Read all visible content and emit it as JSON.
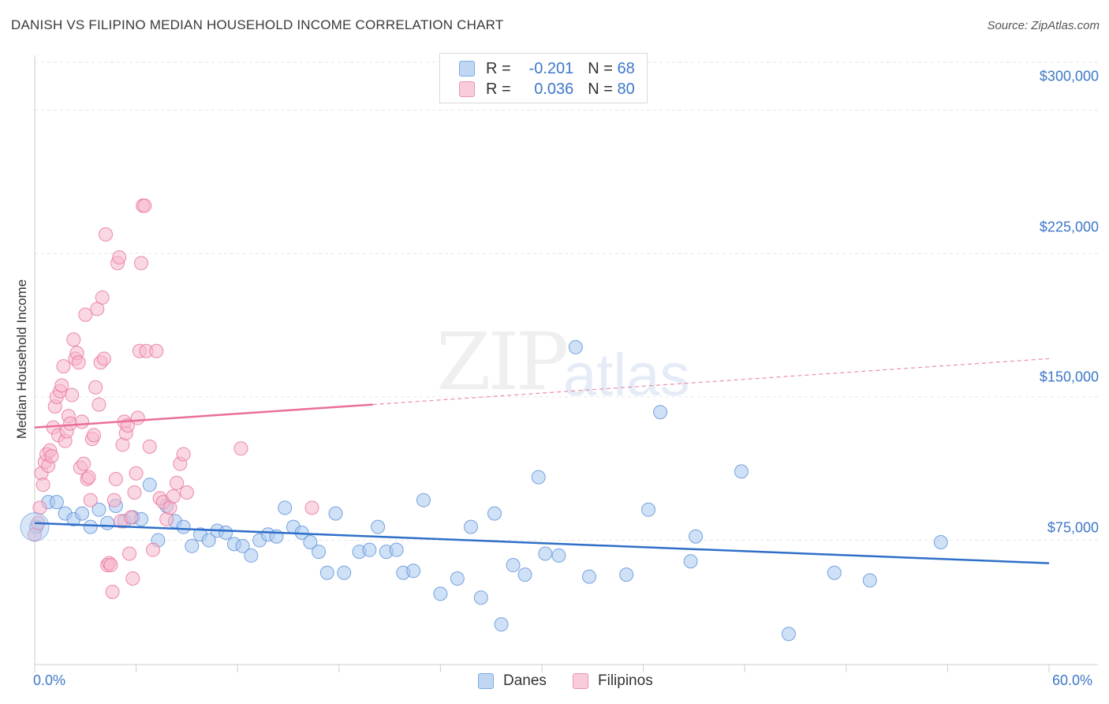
{
  "title": "DANISH VS FILIPINO MEDIAN HOUSEHOLD INCOME CORRELATION CHART",
  "source": "Source: ZipAtlas.com",
  "watermark": {
    "part1": "ZIP",
    "part2": "atlas"
  },
  "legend": {
    "rows": [
      {
        "r_label": "R =",
        "r_value": "-0.201",
        "n_label": "N =",
        "n_value": "68",
        "color": "#a8c8f0"
      },
      {
        "r_label": "R =",
        "r_value": "0.036",
        "n_label": "N =",
        "n_value": "80",
        "color": "#f5b8cc"
      }
    ]
  },
  "chart_data": {
    "type": "scatter",
    "title": "DANISH VS FILIPINO MEDIAN HOUSEHOLD INCOME CORRELATION CHART",
    "xlabel": "",
    "ylabel": "Median Household Income",
    "xlim": [
      0,
      60
    ],
    "ylim": [
      10000,
      325000
    ],
    "x_tick_labels": [
      "0.0%",
      "60.0%"
    ],
    "y_ticks": [
      75000,
      150000,
      225000,
      300000
    ],
    "y_tick_labels": [
      "$75,000",
      "$150,000",
      "$225,000",
      "$300,000"
    ],
    "grid": true,
    "legend_position": "top-center",
    "series": [
      {
        "name": "Danes",
        "color": "#5b8fd6",
        "fill": "#a8c8f0",
        "trend": {
          "x": [
            0,
            60
          ],
          "y": [
            84000,
            63000
          ],
          "dashed_from": null
        },
        "points": [
          [
            0.1,
            82000
          ],
          [
            0.8,
            95000
          ],
          [
            1.3,
            95000
          ],
          [
            1.8,
            89000
          ],
          [
            2.3,
            86000
          ],
          [
            2.8,
            89000
          ],
          [
            3.3,
            82000
          ],
          [
            3.8,
            91000
          ],
          [
            4.3,
            84000
          ],
          [
            4.8,
            93000
          ],
          [
            5.3,
            85000
          ],
          [
            5.8,
            87000
          ],
          [
            6.3,
            86000
          ],
          [
            6.8,
            104000
          ],
          [
            7.3,
            75000
          ],
          [
            7.8,
            93000
          ],
          [
            8.3,
            85000
          ],
          [
            8.8,
            82000
          ],
          [
            9.3,
            72000
          ],
          [
            9.8,
            78000
          ],
          [
            10.3,
            75000
          ],
          [
            10.8,
            80000
          ],
          [
            11.3,
            79000
          ],
          [
            11.8,
            73000
          ],
          [
            12.3,
            72000
          ],
          [
            12.8,
            67000
          ],
          [
            13.3,
            75000
          ],
          [
            13.8,
            78000
          ],
          [
            14.3,
            77000
          ],
          [
            14.8,
            92000
          ],
          [
            15.3,
            82000
          ],
          [
            15.8,
            79000
          ],
          [
            16.3,
            74000
          ],
          [
            16.8,
            69000
          ],
          [
            17.3,
            58000
          ],
          [
            17.8,
            89000
          ],
          [
            18.3,
            58000
          ],
          [
            19.2,
            69000
          ],
          [
            19.8,
            70000
          ],
          [
            20.3,
            82000
          ],
          [
            20.8,
            69000
          ],
          [
            21.4,
            70000
          ],
          [
            21.8,
            58000
          ],
          [
            22.4,
            59000
          ],
          [
            23.0,
            96000
          ],
          [
            24.0,
            47000
          ],
          [
            25.0,
            55000
          ],
          [
            25.8,
            82000
          ],
          [
            26.4,
            45000
          ],
          [
            27.2,
            89000
          ],
          [
            27.6,
            31000
          ],
          [
            28.3,
            62000
          ],
          [
            29.0,
            57000
          ],
          [
            29.8,
            108000
          ],
          [
            30.2,
            68000
          ],
          [
            31.0,
            67000
          ],
          [
            32.0,
            176000
          ],
          [
            32.8,
            56000
          ],
          [
            35.0,
            57000
          ],
          [
            36.3,
            91000
          ],
          [
            37.0,
            142000
          ],
          [
            38.8,
            64000
          ],
          [
            39.1,
            77000
          ],
          [
            41.8,
            111000
          ],
          [
            44.6,
            26000
          ],
          [
            47.3,
            58000
          ],
          [
            49.4,
            54000
          ],
          [
            53.6,
            74000
          ]
        ]
      },
      {
        "name": "Filipinos",
        "color": "#e96f98",
        "fill": "#f5b8cc",
        "trend": {
          "x": [
            0,
            60
          ],
          "y": [
            134000,
            170000
          ],
          "dashed_from": 20
        },
        "points": [
          [
            0.0,
            78000
          ],
          [
            0.2,
            84000
          ],
          [
            0.3,
            92000
          ],
          [
            0.4,
            110000
          ],
          [
            0.5,
            104000
          ],
          [
            0.6,
            116000
          ],
          [
            0.7,
            120000
          ],
          [
            0.8,
            114000
          ],
          [
            0.9,
            122000
          ],
          [
            1.0,
            119000
          ],
          [
            1.1,
            134000
          ],
          [
            1.2,
            145000
          ],
          [
            1.3,
            150000
          ],
          [
            1.4,
            130000
          ],
          [
            1.5,
            153000
          ],
          [
            1.6,
            156000
          ],
          [
            1.7,
            166000
          ],
          [
            1.8,
            127000
          ],
          [
            1.9,
            132000
          ],
          [
            2.0,
            140000
          ],
          [
            2.1,
            136000
          ],
          [
            2.2,
            151000
          ],
          [
            2.3,
            180000
          ],
          [
            2.4,
            170000
          ],
          [
            2.5,
            173000
          ],
          [
            2.6,
            168000
          ],
          [
            2.7,
            113000
          ],
          [
            2.8,
            137000
          ],
          [
            2.9,
            115000
          ],
          [
            3.0,
            193000
          ],
          [
            3.1,
            107000
          ],
          [
            3.2,
            108000
          ],
          [
            3.3,
            96000
          ],
          [
            3.4,
            128000
          ],
          [
            3.5,
            130000
          ],
          [
            3.6,
            155000
          ],
          [
            3.7,
            196000
          ],
          [
            3.8,
            146000
          ],
          [
            3.9,
            168000
          ],
          [
            4.0,
            202000
          ],
          [
            4.1,
            170000
          ],
          [
            4.2,
            235000
          ],
          [
            4.3,
            62000
          ],
          [
            4.4,
            63000
          ],
          [
            4.5,
            62000
          ],
          [
            4.6,
            48000
          ],
          [
            4.7,
            96000
          ],
          [
            4.8,
            107000
          ],
          [
            4.9,
            220000
          ],
          [
            5.0,
            223000
          ],
          [
            5.1,
            85000
          ],
          [
            5.2,
            125000
          ],
          [
            5.3,
            137000
          ],
          [
            5.4,
            131000
          ],
          [
            5.5,
            135000
          ],
          [
            5.6,
            68000
          ],
          [
            5.7,
            87000
          ],
          [
            5.8,
            55000
          ],
          [
            5.9,
            100000
          ],
          [
            6.0,
            110000
          ],
          [
            6.1,
            139000
          ],
          [
            6.2,
            174000
          ],
          [
            6.3,
            220000
          ],
          [
            6.4,
            250000
          ],
          [
            6.5,
            250000
          ],
          [
            6.6,
            174000
          ],
          [
            6.8,
            124000
          ],
          [
            7.0,
            70000
          ],
          [
            7.2,
            174000
          ],
          [
            7.4,
            97000
          ],
          [
            7.6,
            95000
          ],
          [
            7.8,
            86000
          ],
          [
            8.0,
            92000
          ],
          [
            8.2,
            98000
          ],
          [
            8.4,
            105000
          ],
          [
            8.6,
            115000
          ],
          [
            8.8,
            120000
          ],
          [
            9.0,
            100000
          ],
          [
            12.2,
            123000
          ],
          [
            16.4,
            92000
          ]
        ]
      }
    ]
  },
  "legend_bottom": [
    {
      "label": "Danes",
      "color": "#a8c8f0"
    },
    {
      "label": "Filipinos",
      "color": "#f5b8cc"
    }
  ]
}
